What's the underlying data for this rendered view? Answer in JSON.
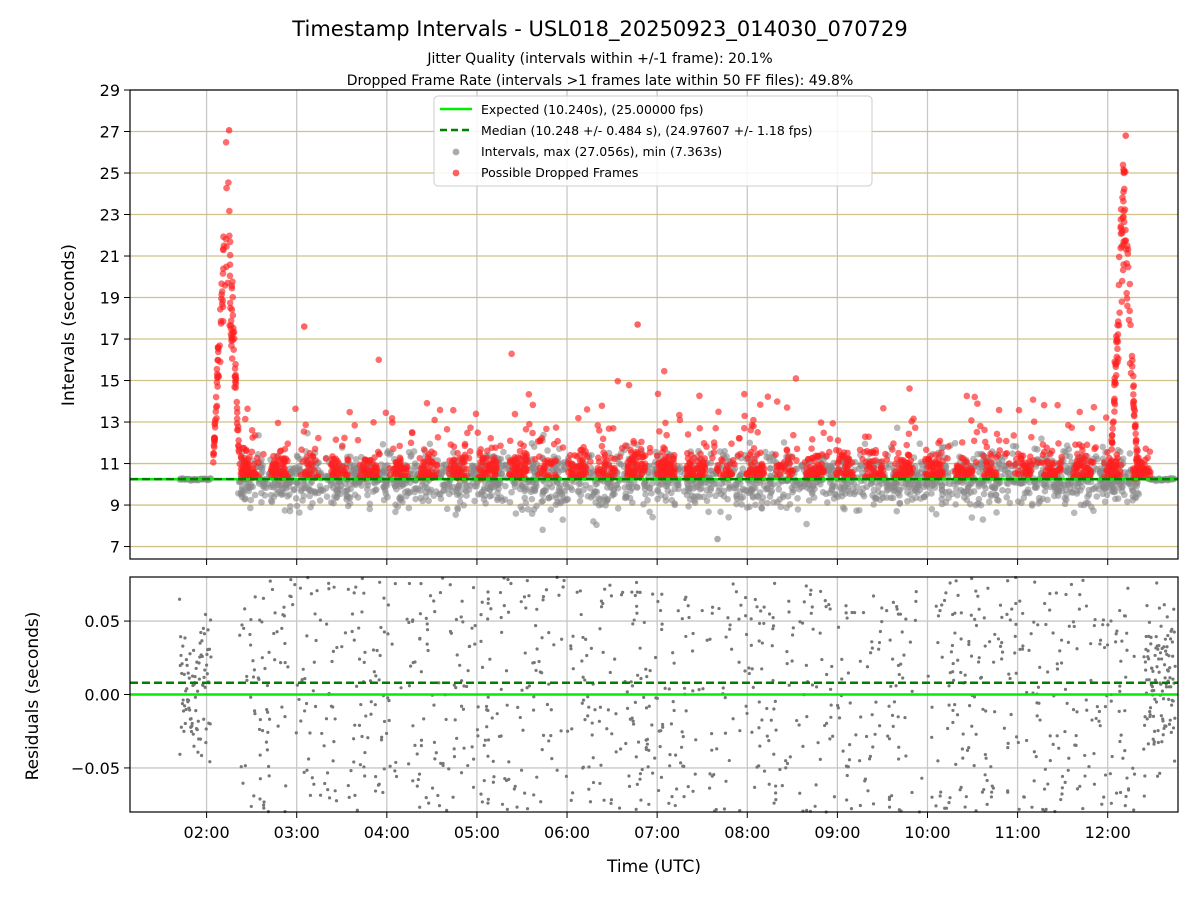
{
  "chart_data": {
    "type": "scatter",
    "title": "Timestamp Intervals - USL018_20250923_014030_070729",
    "subtitle_1": "Jitter Quality (intervals within +/-1 frame): 20.1%",
    "subtitle_2": "Dropped Frame Rate (intervals >1 frames late within 50 FF files): 49.8%",
    "xlabel": "Time (UTC)",
    "x_ticks": [
      "02:00",
      "03:00",
      "04:00",
      "05:00",
      "06:00",
      "07:00",
      "08:00",
      "09:00",
      "10:00",
      "11:00",
      "12:00"
    ],
    "x_range_hours": [
      1.15,
      12.78
    ],
    "panels": [
      {
        "name": "intervals",
        "ylabel": "Intervals (seconds)",
        "ylim": [
          6.4,
          29
        ],
        "y_ticks": [
          "7",
          "9",
          "11",
          "13",
          "15",
          "17",
          "19",
          "21",
          "23",
          "25",
          "27",
          "29"
        ],
        "grid": true,
        "legend_position": "top-center",
        "legend": [
          "Expected (10.240s), (25.00000 fps)",
          "Median (10.248 +/- 0.484 s), (24.97607 +/- 1.18 fps)",
          "Intervals, max (27.056s), min (7.363s)",
          "Possible Dropped Frames"
        ],
        "expected_interval_s": 10.24,
        "median_interval_s": 10.248,
        "max_interval_s": 27.056,
        "min_interval_s": 7.363,
        "series_notes": {
          "intervals": "grey points, densely scattered ~8.5 to 12 s from 01:40 to 12:45 UTC",
          "dropped": "red points ~10-12 s with outliers up to ~17.7 s; spikes up to ~27 s near 02:15 and 12:15 UTC"
        },
        "notable_points": [
          {
            "time": "02:15",
            "value": 27.056
          },
          {
            "time": "12:12",
            "value": 26.8
          },
          {
            "time": "06:47",
            "value": 17.7
          },
          {
            "time": "03:05",
            "value": 17.6
          },
          {
            "time": "07:40",
            "value": 7.363
          }
        ]
      },
      {
        "name": "residuals",
        "ylabel": "Residuals (seconds)",
        "ylim": [
          -0.08,
          0.08
        ],
        "y_ticks": [
          "−0.05",
          "0.00",
          "0.05"
        ],
        "y_tick_values": [
          -0.05,
          0.0,
          0.05
        ],
        "grid": true,
        "expected_residual": 0.0,
        "median_residual": 0.008
      }
    ],
    "colors": {
      "expected": "#00ee00",
      "median": "#008000",
      "intervals": "#888888",
      "dropped": "#ff2020",
      "gridline": "#d1c186",
      "residual_points": "#777777"
    }
  }
}
